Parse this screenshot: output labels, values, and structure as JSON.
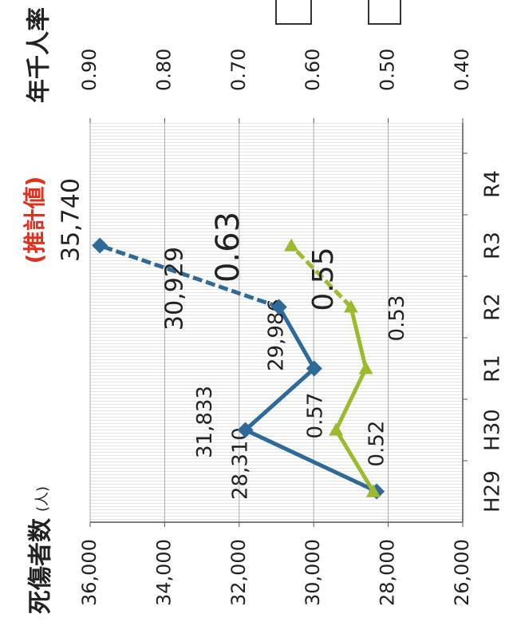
{
  "chart_data": {
    "type": "line",
    "y_axis_title": "死傷者数",
    "y_axis_unit": "(人)",
    "y2_axis_title": "年千人率",
    "annotation": "(推計値)",
    "annotation_color": "#e0301e",
    "categories": [
      "H29",
      "H30",
      "R1",
      "R2",
      "R3",
      "R4"
    ],
    "ylim": [
      26000,
      36000
    ],
    "yticks": [
      {
        "value": 26000,
        "label": "26,000"
      },
      {
        "value": 28000,
        "label": "28,000"
      },
      {
        "value": 30000,
        "label": "30,000"
      },
      {
        "value": 32000,
        "label": "32,000"
      },
      {
        "value": 34000,
        "label": "34,000"
      },
      {
        "value": 36000,
        "label": "36,000"
      }
    ],
    "y2lim": [
      0.4,
      0.9
    ],
    "y2ticks": [
      {
        "value": 0.4,
        "label": "0.40"
      },
      {
        "value": 0.5,
        "label": "0.50"
      },
      {
        "value": 0.6,
        "label": "0.60"
      },
      {
        "value": 0.7,
        "label": "0.70"
      },
      {
        "value": 0.8,
        "label": "0.80"
      },
      {
        "value": 0.9,
        "label": "0.90"
      }
    ],
    "grid": true,
    "series": [
      {
        "color": "#2d6a9a",
        "marker": "diamond",
        "dashed_from_index": 3,
        "values": [
          28310,
          31833,
          29986,
          30929,
          35740,
          null
        ],
        "value_labels": [
          "28,310",
          "31,833",
          "29,986",
          "30,929",
          "35,740",
          null
        ]
      },
      {
        "color": "#9bbb2c",
        "marker": "triangle",
        "dashed_from_index": 3,
        "axis": "y2",
        "values": [
          0.52,
          0.57,
          0.53,
          0.55,
          0.63,
          null
        ]
      }
    ]
  }
}
